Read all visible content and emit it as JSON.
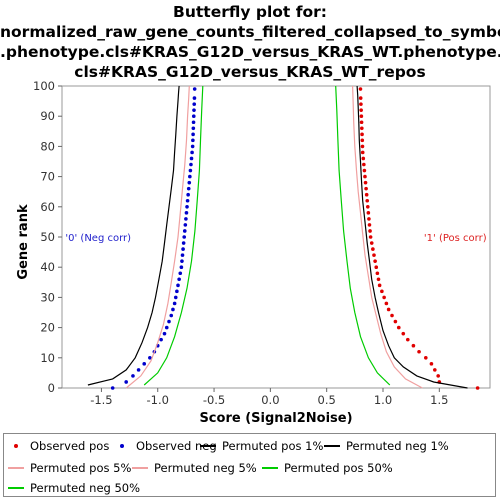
{
  "chart_data": {
    "type": "line",
    "title_lines": [
      "Butterfly plot for:",
      "normalized_raw_gene_counts_filtered_collapsed_to_symbols",
      ".phenotype.cls#KRAS_G12D_versus_KRAS_WT.phenotype.",
      "cls#KRAS_G12D_versus_KRAS_WT_repos"
    ],
    "xlabel": "Score (Signal2Noise)",
    "ylabel": "Gene rank",
    "xlim": [
      -1.85,
      1.95
    ],
    "ylim": [
      0,
      100
    ],
    "x_ticks": [
      -1.5,
      -1.0,
      -0.5,
      0.0,
      0.5,
      1.0,
      1.5
    ],
    "x_tick_labels": [
      "-1.5",
      "-1.0",
      "-0.5",
      "0.0",
      "0.5",
      "1.0",
      "1.5"
    ],
    "y_ticks": [
      0,
      10,
      20,
      30,
      40,
      50,
      60,
      70,
      80,
      90,
      100
    ],
    "y_tick_labels": [
      "0",
      "10",
      "20",
      "30",
      "40",
      "50",
      "60",
      "70",
      "80",
      "90",
      "100"
    ],
    "grid": false,
    "annotations": [
      {
        "text": "'0' (Neg corr)",
        "x": -1.82,
        "y": 50,
        "color": "#2222cc",
        "anchor": "start"
      },
      {
        "text": "'1' (Pos corr)",
        "x": 1.92,
        "y": 50,
        "color": "#dd2222",
        "anchor": "end"
      }
    ],
    "series": [
      {
        "name": "Observed pos",
        "kind": "points",
        "color": "#e00000",
        "x": [
          1.84,
          1.5,
          1.49,
          1.46,
          1.43,
          1.38,
          1.32,
          1.27,
          1.22,
          1.18,
          1.14,
          1.11,
          1.08,
          1.05,
          1.03,
          1.01,
          0.99,
          0.97,
          0.96,
          0.95,
          0.94,
          0.93,
          0.92,
          0.91,
          0.9,
          0.89,
          0.885,
          0.88,
          0.875,
          0.87,
          0.865,
          0.86,
          0.855,
          0.85,
          0.845,
          0.84,
          0.835,
          0.83,
          0.825,
          0.82,
          0.818,
          0.816,
          0.814,
          0.812,
          0.81,
          0.808,
          0.806,
          0.804,
          0.802,
          0.8
        ],
        "y": [
          0,
          2,
          4,
          6,
          8,
          10,
          12,
          14,
          16,
          18,
          20,
          22,
          24,
          26,
          28,
          30,
          32,
          34,
          36,
          38,
          40,
          42,
          44,
          46,
          48,
          50,
          52,
          54,
          56,
          58,
          60,
          62,
          64,
          66,
          68,
          70,
          72,
          74,
          76,
          78,
          80,
          82,
          84,
          86,
          88,
          90,
          92,
          94,
          96,
          99
        ]
      },
      {
        "name": "Observed neg",
        "kind": "points",
        "color": "#0000cc",
        "x": [
          -1.4,
          -1.28,
          -1.22,
          -1.17,
          -1.12,
          -1.07,
          -1.03,
          -1.0,
          -0.97,
          -0.94,
          -0.92,
          -0.9,
          -0.88,
          -0.865,
          -0.85,
          -0.84,
          -0.83,
          -0.82,
          -0.81,
          -0.8,
          -0.79,
          -0.785,
          -0.78,
          -0.775,
          -0.77,
          -0.765,
          -0.76,
          -0.755,
          -0.75,
          -0.745,
          -0.74,
          -0.735,
          -0.73,
          -0.725,
          -0.72,
          -0.715,
          -0.71,
          -0.705,
          -0.7,
          -0.695,
          -0.69,
          -0.688,
          -0.686,
          -0.684,
          -0.682,
          -0.68,
          -0.678,
          -0.676,
          -0.674,
          -0.672
        ],
        "y": [
          0,
          2,
          4,
          6,
          8,
          10,
          12,
          14,
          16,
          18,
          20,
          22,
          24,
          26,
          28,
          30,
          32,
          34,
          36,
          38,
          40,
          42,
          44,
          46,
          48,
          50,
          52,
          54,
          56,
          58,
          60,
          62,
          64,
          66,
          68,
          70,
          72,
          74,
          76,
          78,
          80,
          82,
          84,
          86,
          88,
          90,
          92,
          94,
          96,
          99
        ]
      },
      {
        "name": "Permuted pos 1%",
        "kind": "line",
        "color": "#000000",
        "x": [
          1.75,
          1.45,
          1.3,
          1.18,
          1.1,
          1.05,
          1.0,
          0.96,
          0.93,
          0.9,
          0.88,
          0.86,
          0.84,
          0.82,
          0.81,
          0.8,
          0.79,
          0.785,
          0.78,
          0.775,
          0.77
        ],
        "y": [
          0,
          2,
          4,
          7,
          10,
          14,
          19,
          25,
          30,
          36,
          42,
          48,
          55,
          62,
          68,
          75,
          82,
          88,
          93,
          97,
          100
        ]
      },
      {
        "name": "Permuted neg 1%",
        "kind": "line",
        "color": "#000000",
        "x": [
          -1.62,
          -1.4,
          -1.28,
          -1.2,
          -1.14,
          -1.09,
          -1.05,
          -1.02,
          -0.99,
          -0.96,
          -0.94,
          -0.92,
          -0.9,
          -0.88,
          -0.86,
          -0.85,
          -0.84,
          -0.83,
          -0.82,
          -0.815,
          -0.81
        ],
        "y": [
          1,
          3,
          6,
          10,
          15,
          20,
          25,
          30,
          36,
          42,
          48,
          54,
          60,
          66,
          72,
          78,
          84,
          90,
          95,
          98,
          100
        ]
      },
      {
        "name": "Permuted pos 5%",
        "kind": "line",
        "color": "#f0a0a0",
        "x": [
          1.35,
          1.2,
          1.1,
          1.03,
          0.98,
          0.94,
          0.9,
          0.87,
          0.84,
          0.82,
          0.8,
          0.78,
          0.765,
          0.75,
          0.74,
          0.735,
          0.73
        ],
        "y": [
          0,
          3,
          7,
          12,
          18,
          24,
          30,
          37,
          44,
          51,
          58,
          65,
          72,
          80,
          88,
          94,
          100
        ]
      },
      {
        "name": "Permuted neg 5%",
        "kind": "line",
        "color": "#f0a0a0",
        "x": [
          -1.28,
          -1.15,
          -1.06,
          -1.0,
          -0.95,
          -0.91,
          -0.88,
          -0.85,
          -0.82,
          -0.8,
          -0.78,
          -0.76,
          -0.745,
          -0.735,
          -0.725,
          -0.72
        ],
        "y": [
          0,
          4,
          9,
          15,
          21,
          28,
          35,
          42,
          50,
          58,
          66,
          74,
          82,
          90,
          96,
          100
        ]
      },
      {
        "name": "Permuted pos 50%",
        "kind": "line",
        "color": "#00cc00",
        "x": [
          1.06,
          0.95,
          0.87,
          0.8,
          0.75,
          0.71,
          0.68,
          0.65,
          0.63,
          0.61,
          0.6,
          0.59,
          0.58
        ],
        "y": [
          1,
          5,
          10,
          17,
          25,
          33,
          42,
          52,
          62,
          72,
          82,
          92,
          100
        ]
      },
      {
        "name": "Permuted neg 50%",
        "kind": "line",
        "color": "#00cc00",
        "x": [
          -1.12,
          -1.0,
          -0.92,
          -0.85,
          -0.79,
          -0.74,
          -0.7,
          -0.67,
          -0.65,
          -0.63,
          -0.62,
          -0.61,
          -0.6
        ],
        "y": [
          1,
          5,
          10,
          17,
          25,
          33,
          42,
          52,
          62,
          72,
          82,
          92,
          100
        ]
      }
    ]
  },
  "legend": {
    "items": [
      {
        "label": "Observed pos",
        "symbol": "dot",
        "color": "#e00000"
      },
      {
        "label": "Observed neg",
        "symbol": "dot",
        "color": "#0000cc"
      },
      {
        "label": "Permuted pos 1%",
        "symbol": "line",
        "color": "#000000"
      },
      {
        "label": "Permuted neg 1%",
        "symbol": "line",
        "color": "#000000"
      },
      {
        "label": "Permuted pos 5%",
        "symbol": "line",
        "color": "#f0a0a0"
      },
      {
        "label": "Permuted neg 5%",
        "symbol": "line",
        "color": "#f0a0a0"
      },
      {
        "label": "Permuted pos 50%",
        "symbol": "line",
        "color": "#00cc00"
      },
      {
        "label": "Permuted neg 50%",
        "symbol": "line",
        "color": "#00cc00"
      }
    ]
  }
}
